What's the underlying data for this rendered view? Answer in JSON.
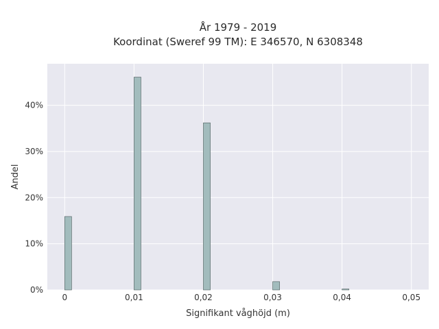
{
  "chart_data": {
    "type": "bar",
    "title_line1": "År 1979 - 2019",
    "title_line2": "Koordinat (Sweref 99 TM): E 346570, N 6308348",
    "xlabel": "Signifikant våghöjd (m)",
    "ylabel": "Andel",
    "xlim": [
      -0.0025,
      0.0525
    ],
    "ylim": [
      0,
      0.49
    ],
    "x_ticks": [
      0,
      0.01,
      0.02,
      0.03,
      0.04,
      0.05
    ],
    "x_tick_labels": [
      "0",
      "0,01",
      "0,02",
      "0,03",
      "0,04",
      "0,05"
    ],
    "y_ticks": [
      0,
      0.1,
      0.2,
      0.3,
      0.4
    ],
    "y_tick_labels": [
      "0%",
      "10%",
      "20%",
      "30%",
      "40%"
    ],
    "bin_width": 0.001,
    "bars": [
      {
        "x": 0.0,
        "value": 0.159
      },
      {
        "x": 0.01,
        "value": 0.461
      },
      {
        "x": 0.02,
        "value": 0.362
      },
      {
        "x": 0.03,
        "value": 0.018
      },
      {
        "x": 0.04,
        "value": 0.002
      }
    ],
    "grid": true,
    "colors": {
      "background": "#e8e8f0",
      "grid": "#ffffff",
      "bar_fill": "#a2bcbd",
      "bar_stroke": "#4a5a5a"
    }
  }
}
